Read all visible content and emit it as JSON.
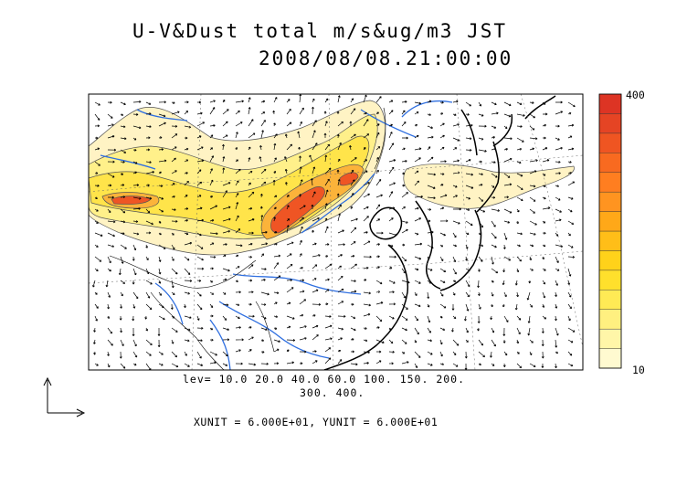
{
  "title": {
    "line1": "U-V&Dust total m/s&ug/m3 JST",
    "line2": "2008/08/08.21:00:00"
  },
  "contour_levels_label": {
    "line1": "lev= 10.0 20.0 40.0 60.0 100. 150. 200.",
    "line2": "300. 400."
  },
  "contour_levels": [
    10,
    20,
    40,
    60,
    100,
    150,
    200,
    300,
    400
  ],
  "unit_text": "XUNIT = 6.000E+01, YUNIT = 6.000E+01",
  "colorbar": {
    "max_label": "400",
    "min_label": "10",
    "colors": [
      "#fffad0",
      "#fff6a8",
      "#fff080",
      "#ffea55",
      "#ffe02c",
      "#ffd21a",
      "#ffbe18",
      "#ffa818",
      "#ff9420",
      "#ff7e20",
      "#f86a20",
      "#ef5522",
      "#e54424",
      "#dd3424"
    ]
  },
  "colors": {
    "dust_light": "#fff2b0",
    "dust_mid": "#ffe45a",
    "dust_orange": "#fbb33a",
    "dust_red": "#ef5524",
    "river": "#2f6fe0",
    "coast": "#000000",
    "arrows": "#000000"
  },
  "icons": {
    "unit_vector": "axes-arrow-icon"
  }
}
